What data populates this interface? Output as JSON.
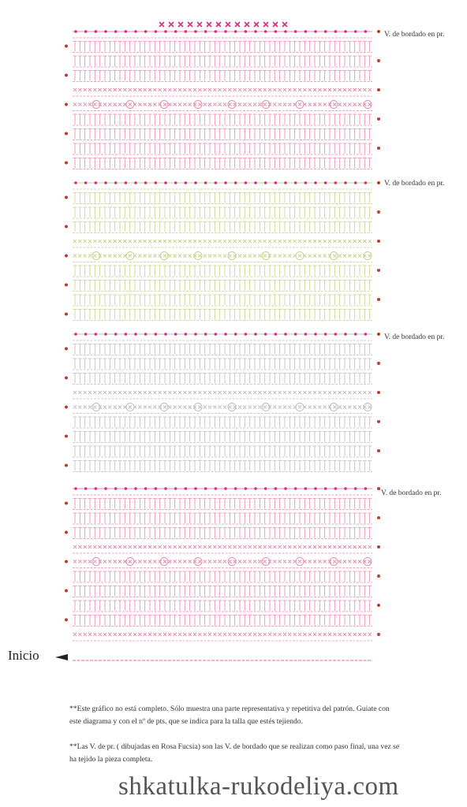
{
  "labels": [
    "V. de bordado en pr.",
    "V. de bordado en pr.",
    "V. de bordado en pr.",
    "V. de bordado en pr."
  ],
  "start": "Inicio",
  "notes": [
    "**Este gráfico no está completo. Sólo muestra una parte representativa y repetitiva del patrón. Guiate con este diagrama y con el nº de pts. que se indica para la talla que estés tejiendo.",
    "**Las V. de pr. ( dibujadas en Rosa Fucsia) son las V. de bordado que se realizan como paso final, una vez se ha tejido la pieza completa."
  ],
  "watermark": "shkatulka-rukodeliya.com"
}
